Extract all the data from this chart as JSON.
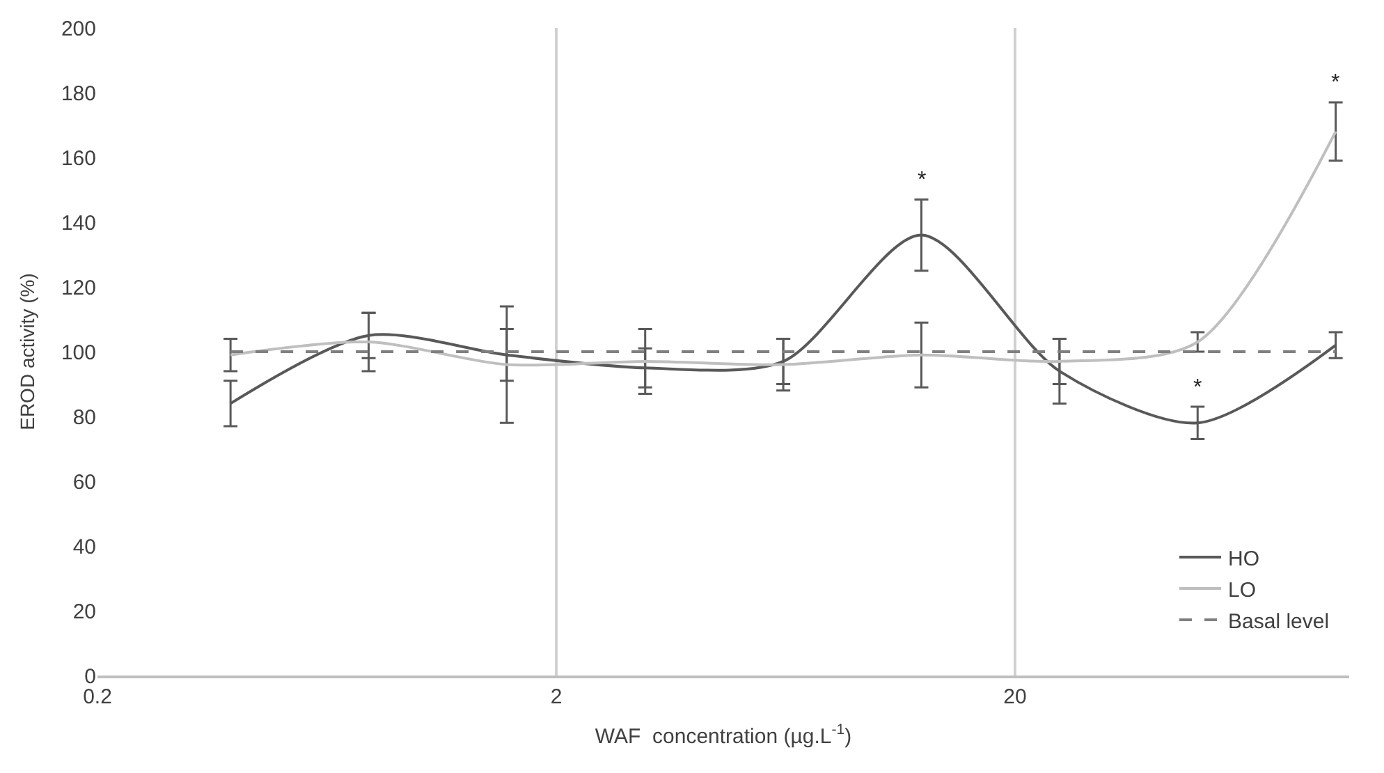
{
  "chart_data": {
    "type": "line",
    "xlabel": "WAF  concentration (µg.L$^{-1}$)",
    "ylabel": "EROD activity (%)",
    "x": [
      0.39,
      0.78,
      1.56,
      3.125,
      6.25,
      12.5,
      25,
      50,
      100
    ],
    "series": [
      {
        "name": "HO",
        "color": "#595959",
        "values": [
          84,
          105,
          99,
          95,
          97,
          136,
          94,
          78,
          102
        ],
        "errors": [
          7,
          7,
          8,
          6,
          7,
          11,
          10,
          5,
          4
        ]
      },
      {
        "name": "LO",
        "color": "#bfbfbf",
        "values": [
          99,
          103,
          96,
          97,
          96,
          99,
          97,
          103,
          168
        ],
        "errors": [
          5,
          9,
          18,
          10,
          8,
          10,
          7,
          3,
          9
        ]
      },
      {
        "name": "Basal level",
        "color": "#7f7f7f",
        "line_style": "dashed",
        "x": [
          0.39,
          100
        ],
        "values": [
          100,
          100
        ]
      }
    ],
    "annotations": [
      {
        "text": "*",
        "x": 12.5,
        "y": 136
      },
      {
        "text": "*",
        "x": 50,
        "y": 78
      },
      {
        "text": "*",
        "x": 100,
        "y": 168
      }
    ],
    "log": "x",
    "xlim": [
      0.2,
      107
    ],
    "xticks": [
      0.2,
      2,
      20
    ],
    "ylim": [
      0,
      200
    ],
    "yticks": [
      0,
      20,
      40,
      60,
      80,
      100,
      120,
      140,
      160,
      180,
      200
    ],
    "grid": "x",
    "legend": "bottom right",
    "marker": "none",
    "line_style": "solid"
  }
}
